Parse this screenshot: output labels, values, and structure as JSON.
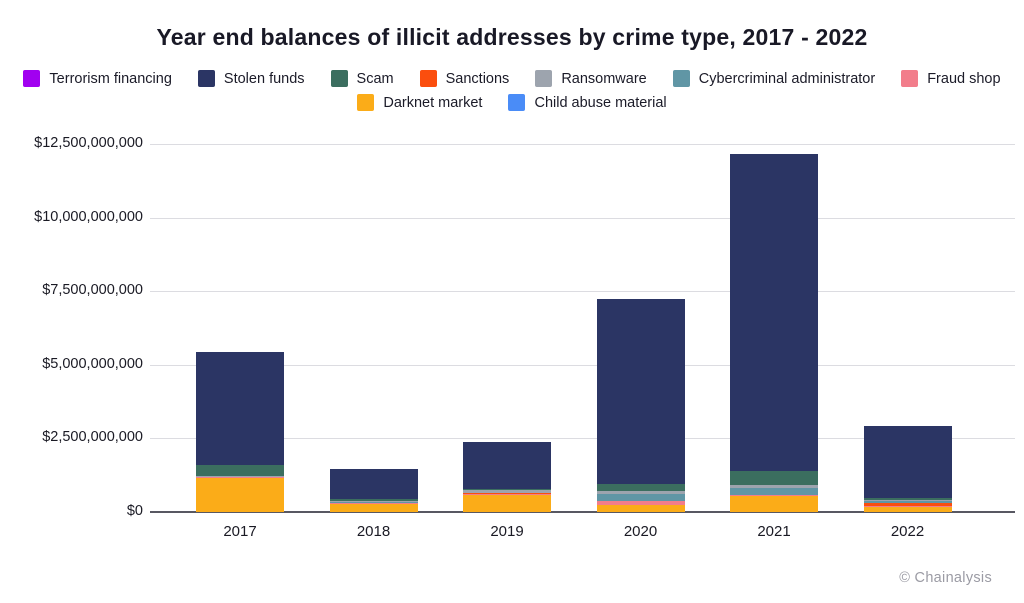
{
  "title": "Year end balances of illicit addresses by crime type, 2017 - 2022",
  "footer": {
    "credit": "© Chainalysis"
  },
  "colors": {
    "terrorism_financing": "#A100F0",
    "stolen_funds": "#2B3564",
    "scam": "#3B6E5F",
    "sanctions": "#FB4E0E",
    "ransomware": "#9DA4AE",
    "cybercriminal_administrator": "#6096A5",
    "fraud_shop": "#F27D8B",
    "darknet_market": "#FBAC18",
    "child_abuse_material": "#4A8CF7"
  },
  "legend": {
    "rows": [
      [
        {
          "label": "Terrorism financing",
          "color": "#A100F0"
        },
        {
          "label": "Stolen funds",
          "color": "#2B3564"
        },
        {
          "label": "Scam",
          "color": "#3B6E5F"
        },
        {
          "label": "Sanctions",
          "color": "#FB4E0E"
        },
        {
          "label": "Ransomware",
          "color": "#9DA4AE"
        },
        {
          "label": "Cybercriminal administrator",
          "color": "#6096A5"
        },
        {
          "label": "Fraud shop",
          "color": "#F27D8B"
        }
      ],
      [
        {
          "label": "Darknet market",
          "color": "#FBAC18"
        },
        {
          "label": "Child abuse material",
          "color": "#4A8CF7"
        }
      ]
    ]
  },
  "chart_data": {
    "type": "bar",
    "stacked": true,
    "title": "Year end balances of illicit addresses by crime type, 2017 - 2022",
    "unit": "USD billions",
    "categories": [
      "2017",
      "2018",
      "2019",
      "2020",
      "2021",
      "2022"
    ],
    "series": [
      {
        "name": "Darknet market",
        "color": "#FBAC18",
        "values": [
          1.17,
          0.28,
          0.58,
          0.25,
          0.54,
          0.17
        ]
      },
      {
        "name": "Fraud shop",
        "color": "#F27D8B",
        "values": [
          0.02,
          0.01,
          0.02,
          0.13,
          0.03,
          0.02
        ]
      },
      {
        "name": "Child abuse material",
        "color": "#4A8CF7",
        "values": [
          0,
          0,
          0,
          0,
          0,
          0
        ]
      },
      {
        "name": "Sanctions",
        "color": "#FB4E0E",
        "values": [
          0,
          0,
          0.03,
          0,
          0,
          0.12
        ]
      },
      {
        "name": "Cybercriminal administrator",
        "color": "#6096A5",
        "values": [
          0,
          0.08,
          0,
          0.24,
          0.24,
          0.07
        ]
      },
      {
        "name": "Ransomware",
        "color": "#9DA4AE",
        "values": [
          0.02,
          0.02,
          0.12,
          0.1,
          0.12,
          0.02
        ]
      },
      {
        "name": "Scam",
        "color": "#3B6E5F",
        "values": [
          0.4,
          0.06,
          0.02,
          0.23,
          0.46,
          0.07
        ]
      },
      {
        "name": "Stolen funds",
        "color": "#2B3564",
        "values": [
          3.84,
          1.02,
          1.6,
          6.29,
          10.76,
          2.46
        ]
      },
      {
        "name": "Terrorism financing",
        "color": "#A100F0",
        "values": [
          0,
          0,
          0,
          0,
          0,
          0
        ]
      }
    ],
    "totals_estimate": [
      5.45,
      1.47,
      2.37,
      7.24,
      12.15,
      2.93
    ],
    "y_ticks": [
      {
        "value": 0,
        "label": "$0"
      },
      {
        "value": 2.5,
        "label": "$2,500,000,000"
      },
      {
        "value": 5,
        "label": "$5,000,000,000"
      },
      {
        "value": 7.5,
        "label": "$7,500,000,000"
      },
      {
        "value": 10,
        "label": "$10,000,000,000"
      },
      {
        "value": 12.5,
        "label": "$12,500,000,000"
      }
    ],
    "ylim": [
      0,
      12.5
    ],
    "grid": "horizontal",
    "legend_position": "top"
  }
}
